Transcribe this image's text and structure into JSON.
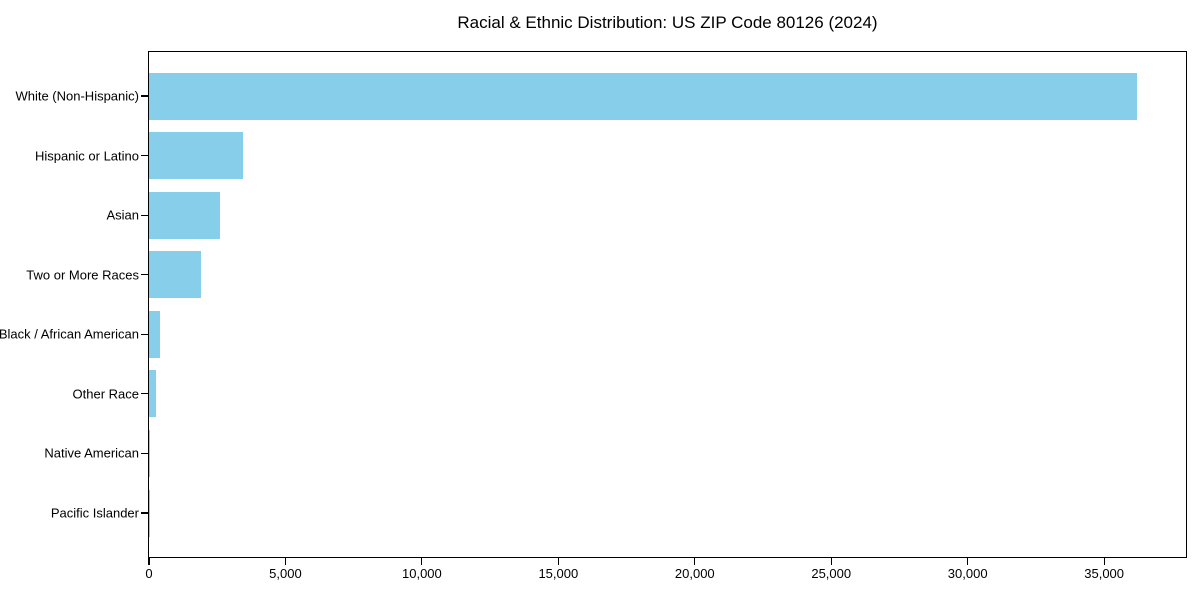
{
  "chart_data": {
    "type": "bar",
    "orientation": "horizontal",
    "title": "Racial & Ethnic Distribution: US ZIP Code 80126 (2024)",
    "categories": [
      "White (Non-Hispanic)",
      "Hispanic or Latino",
      "Asian",
      "Two or More Races",
      "Black / African American",
      "Other Race",
      "Native American",
      "Pacific Islander"
    ],
    "values": [
      36200,
      3450,
      2600,
      1900,
      390,
      260,
      30,
      15
    ],
    "xlabel": "",
    "ylabel": "",
    "xlim": [
      0,
      38000
    ],
    "xticks": [
      0,
      5000,
      10000,
      15000,
      20000,
      25000,
      30000,
      35000
    ],
    "xticklabels": [
      "0",
      "5,000",
      "10,000",
      "15,000",
      "20,000",
      "25,000",
      "30,000",
      "35,000"
    ],
    "grid": false,
    "legend": "none",
    "colors": {
      "bar": "#87CEEB",
      "axis": "#000000",
      "text": "#000000",
      "background": "#FFFFFF"
    }
  }
}
